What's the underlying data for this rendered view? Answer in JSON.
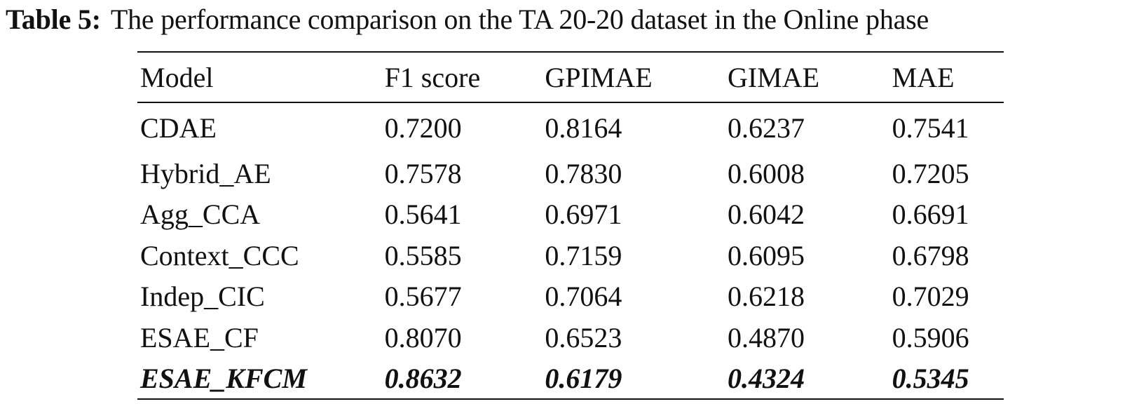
{
  "caption": {
    "label": "Table 5:",
    "text": "The performance comparison on the TA 20-20 dataset in the Online phase"
  },
  "table": {
    "headers": [
      "Model",
      "F1 score",
      "GPIMAE",
      "GIMAE",
      "MAE"
    ],
    "rows": [
      {
        "model": "CDAE",
        "f1": "0.7200",
        "gpimae": "0.8164",
        "gimae": "0.6237",
        "mae": "0.7541"
      },
      {
        "model": "Hybrid_AE",
        "f1": "0.7578",
        "gpimae": "0.7830",
        "gimae": "0.6008",
        "mae": "0.7205"
      },
      {
        "model": "Agg_CCA",
        "f1": "0.5641",
        "gpimae": "0.6971",
        "gimae": "0.6042",
        "mae": "0.6691"
      },
      {
        "model": "Context_CCC",
        "f1": "0.5585",
        "gpimae": "0.7159",
        "gimae": "0.6095",
        "mae": "0.6798"
      },
      {
        "model": "Indep_CIC",
        "f1": "0.5677",
        "gpimae": "0.7064",
        "gimae": "0.6218",
        "mae": "0.7029"
      },
      {
        "model": "ESAE_CF",
        "f1": "0.8070",
        "gpimae": "0.6523",
        "gimae": "0.4870",
        "mae": "0.5906"
      },
      {
        "model": "ESAE_KFCM",
        "f1": "0.8632",
        "gpimae": "0.6179",
        "gimae": "0.4324",
        "mae": "0.5345"
      }
    ]
  }
}
